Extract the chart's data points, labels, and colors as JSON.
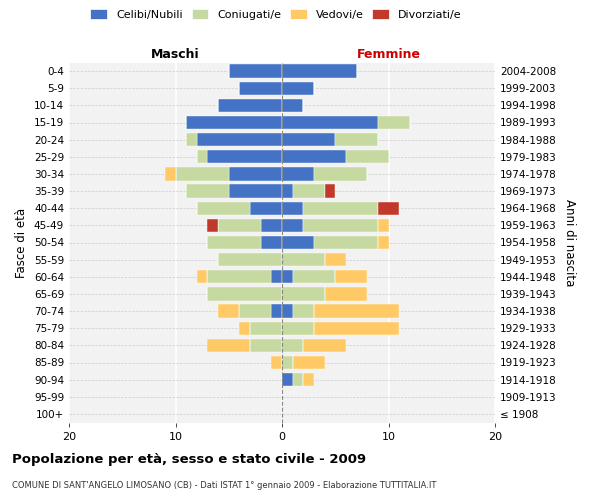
{
  "age_groups": [
    "100+",
    "95-99",
    "90-94",
    "85-89",
    "80-84",
    "75-79",
    "70-74",
    "65-69",
    "60-64",
    "55-59",
    "50-54",
    "45-49",
    "40-44",
    "35-39",
    "30-34",
    "25-29",
    "20-24",
    "15-19",
    "10-14",
    "5-9",
    "0-4"
  ],
  "birth_years": [
    "≤ 1908",
    "1909-1913",
    "1914-1918",
    "1919-1923",
    "1924-1928",
    "1929-1933",
    "1934-1938",
    "1939-1943",
    "1944-1948",
    "1949-1953",
    "1954-1958",
    "1959-1963",
    "1964-1968",
    "1969-1973",
    "1974-1978",
    "1979-1983",
    "1984-1988",
    "1989-1993",
    "1994-1998",
    "1999-2003",
    "2004-2008"
  ],
  "maschi_celibi": [
    0,
    0,
    0,
    0,
    0,
    0,
    1,
    0,
    1,
    0,
    2,
    2,
    3,
    5,
    5,
    7,
    8,
    9,
    6,
    4,
    5
  ],
  "maschi_coniugati": [
    0,
    0,
    0,
    0,
    3,
    3,
    3,
    7,
    6,
    6,
    5,
    4,
    5,
    4,
    5,
    1,
    1,
    0,
    0,
    0,
    0
  ],
  "maschi_vedovi": [
    0,
    0,
    0,
    1,
    4,
    1,
    2,
    0,
    1,
    0,
    0,
    0,
    0,
    0,
    1,
    0,
    0,
    0,
    0,
    0,
    0
  ],
  "maschi_divorziati": [
    0,
    0,
    0,
    0,
    0,
    0,
    0,
    0,
    0,
    0,
    0,
    1,
    0,
    0,
    0,
    0,
    0,
    0,
    0,
    0,
    0
  ],
  "femmine_celibi": [
    0,
    0,
    1,
    0,
    0,
    0,
    1,
    0,
    1,
    0,
    3,
    2,
    2,
    1,
    3,
    6,
    5,
    9,
    2,
    3,
    7
  ],
  "femmine_coniugati": [
    0,
    0,
    1,
    1,
    2,
    3,
    2,
    4,
    4,
    4,
    6,
    7,
    7,
    3,
    5,
    4,
    4,
    3,
    0,
    0,
    0
  ],
  "femmine_vedovi": [
    0,
    0,
    1,
    3,
    4,
    8,
    8,
    4,
    3,
    2,
    1,
    1,
    0,
    0,
    0,
    0,
    0,
    0,
    0,
    0,
    0
  ],
  "femmine_divorziati": [
    0,
    0,
    0,
    0,
    0,
    0,
    0,
    0,
    0,
    0,
    0,
    0,
    2,
    1,
    0,
    0,
    0,
    0,
    0,
    0,
    0
  ],
  "color_celibi": "#4472c4",
  "color_coniugati": "#c5d9a0",
  "color_vedovi": "#ffc966",
  "color_divorziati": "#c0392b",
  "xlim": 20,
  "title": "Popolazione per età, sesso e stato civile - 2009",
  "subtitle": "COMUNE DI SANT'ANGELO LIMOSANO (CB) - Dati ISTAT 1° gennaio 2009 - Elaborazione TUTTITALIA.IT",
  "ylabel_left": "Fasce di età",
  "ylabel_right": "Anni di nascita",
  "label_maschi": "Maschi",
  "label_femmine": "Femmine",
  "legend_celibi": "Celibi/Nubili",
  "legend_coniugati": "Coniugati/e",
  "legend_vedovi": "Vedovi/e",
  "legend_divorziati": "Divorziati/e",
  "bg_color": "#f2f2f2"
}
